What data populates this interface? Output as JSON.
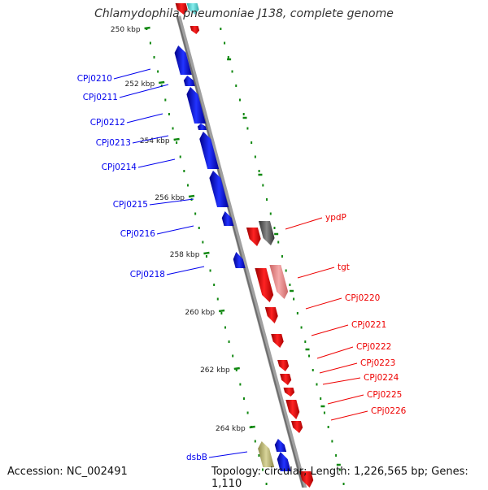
{
  "title": "Chlamydophila pneumoniae J138, complete genome",
  "accession": "Accession: NC_002491",
  "topology": "Topology: circular; Length: 1,226,565 bp; Genes: 1,110",
  "colors": {
    "backbone": "#808080",
    "forward_gene": "#0000ee",
    "reverse_gene": "#ee0000",
    "light_gene": "#ee8888",
    "dark_gene": "#666666",
    "khaki_gene": "#bdb76b",
    "tick": "#118811"
  },
  "ticks": [
    "250 kbp",
    "252 kbp",
    "254 kbp",
    "256 kbp",
    "258 kbp",
    "260 kbp",
    "262 kbp",
    "264 kbp"
  ],
  "left_labels": [
    "CPj0210",
    "CPj0211",
    "CPj0212",
    "CPj0213",
    "CPj0214",
    "CPj0215",
    "CPj0216",
    "CPj0218",
    "dsbB"
  ],
  "right_labels": [
    "ypdP",
    "tgt",
    "CPj0220",
    "CPj0221",
    "CPj0222",
    "CPj0223",
    "CPj0224",
    "CPj0225",
    "CPj0226"
  ]
}
